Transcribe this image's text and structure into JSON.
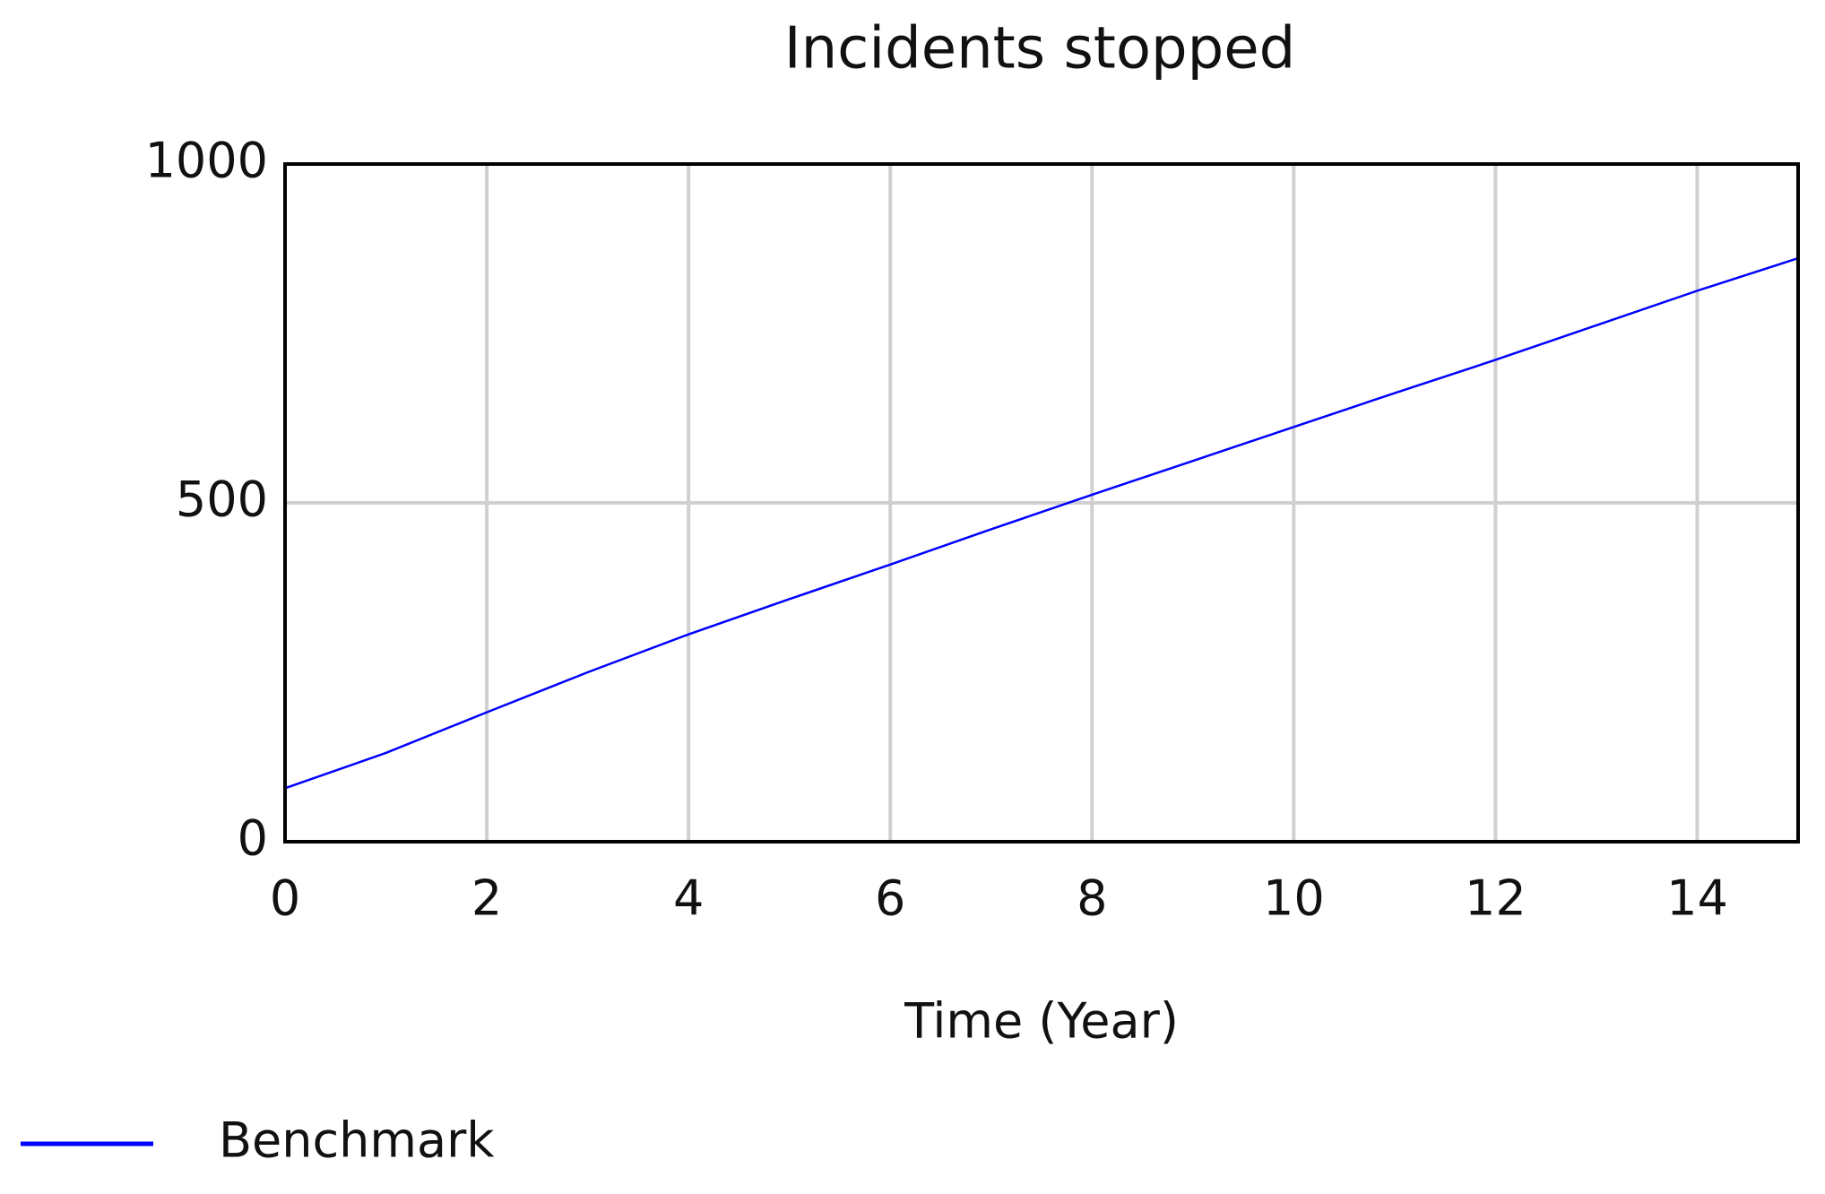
{
  "chart_data": {
    "type": "line",
    "title": "Incidents stopped",
    "x_label": "Time (Year)",
    "x": [
      0,
      1,
      2,
      3,
      4,
      5,
      6,
      7,
      8,
      9,
      10,
      11,
      12,
      13,
      14,
      15
    ],
    "series": [
      {
        "name": "Benchmark",
        "color": "#0000ff",
        "values": [
          79,
          131,
          191,
          250,
          306,
          358,
          409,
          461,
          512,
          562,
          612,
          662,
          711,
          762,
          813,
          861
        ]
      }
    ],
    "xlim": [
      0,
      15
    ],
    "xticks": [
      0,
      2,
      4,
      6,
      8,
      10,
      12,
      14
    ],
    "ylim": [
      0,
      1000
    ],
    "yticks": [
      0,
      500,
      1000
    ],
    "grid": true
  }
}
